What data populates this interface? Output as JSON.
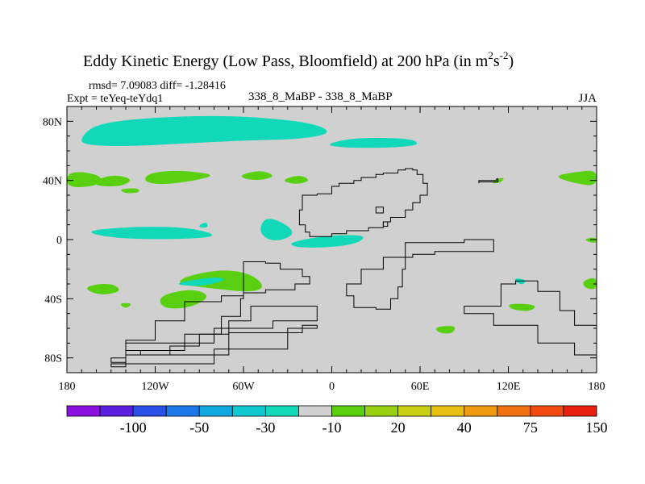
{
  "chart_data": {
    "type": "heatmap",
    "title": "Eddy Kinetic Energy (Low Pass, Bloomfield) at 200 hPa (in m",
    "title_sup1": "2",
    "title_mid": "s",
    "title_sup2": "-2",
    "title_end": ")",
    "stats": "rmsd= 7.09083 diff= -1.28416",
    "experiment": "Expt = teYeq-teYdq1",
    "case_label": "338_8_MaBP - 338_8_MaBP",
    "season": "JJA",
    "xlim": [
      -180,
      180
    ],
    "ylim": [
      -90,
      90
    ],
    "x_ticks": [
      -180,
      -120,
      -60,
      0,
      60,
      120,
      180
    ],
    "x_tick_labels": [
      "180",
      "120W",
      "60W",
      "0",
      "60E",
      "120E",
      "180"
    ],
    "y_ticks": [
      80,
      40,
      0,
      -40,
      -80
    ],
    "y_tick_labels": [
      "80N",
      "40N",
      "0",
      "40S",
      "80S"
    ],
    "colorbar_colors": [
      "#8a10e0",
      "#5a20e0",
      "#2a50e8",
      "#1a78e8",
      "#10a8e0",
      "#10c8d0",
      "#10d8b8",
      "#d0d0d0",
      "#58d010",
      "#98d010",
      "#c8d010",
      "#e8c010",
      "#f09a10",
      "#f07010",
      "#f04a10",
      "#e82010"
    ],
    "colorbar_labels": [
      "-100",
      "-50",
      "-30",
      "-10",
      "20",
      "40",
      "75",
      "150"
    ],
    "background_color": "#d0d0d0",
    "regions": [
      {
        "name": "arctic-band",
        "level": -10,
        "color": "#10d8b8",
        "lonlat": [
          [
            -170,
            70
          ],
          [
            -160,
            78
          ],
          [
            -130,
            82
          ],
          [
            -80,
            84
          ],
          [
            -40,
            82
          ],
          [
            -10,
            78
          ],
          [
            0,
            72
          ],
          [
            -20,
            68
          ],
          [
            -60,
            67
          ],
          [
            -100,
            65
          ],
          [
            -140,
            63
          ],
          [
            -170,
            64
          ]
        ]
      },
      {
        "name": "n-atlantic-arc",
        "level": -10,
        "color": "#10d8b8",
        "lonlat": [
          [
            -5,
            64
          ],
          [
            10,
            68
          ],
          [
            30,
            69
          ],
          [
            55,
            68
          ],
          [
            60,
            64
          ],
          [
            40,
            62
          ],
          [
            10,
            62
          ]
        ]
      },
      {
        "name": "pacific-40n-west",
        "level": 20,
        "color": "#58d010",
        "lonlat": [
          [
            -180,
            45
          ],
          [
            -168,
            46
          ],
          [
            -155,
            42
          ],
          [
            -160,
            36
          ],
          [
            -180,
            35
          ]
        ]
      },
      {
        "name": "pacific-40n-a",
        "level": 20,
        "color": "#58d010",
        "lonlat": [
          [
            -162,
            40
          ],
          [
            -148,
            44
          ],
          [
            -135,
            41
          ],
          [
            -142,
            36
          ],
          [
            -160,
            36
          ]
        ]
      },
      {
        "name": "pacific-40n-b",
        "level": 20,
        "color": "#58d010",
        "lonlat": [
          [
            -125,
            45
          ],
          [
            -105,
            47
          ],
          [
            -78,
            44
          ],
          [
            -92,
            40
          ],
          [
            -115,
            37
          ],
          [
            -128,
            39
          ]
        ]
      },
      {
        "name": "pacific-35n-blob",
        "level": 20,
        "color": "#58d010",
        "lonlat": [
          [
            -145,
            34
          ],
          [
            -132,
            35
          ],
          [
            -130,
            32
          ],
          [
            -140,
            31
          ]
        ]
      },
      {
        "name": "atlantic-45n-a",
        "level": 20,
        "color": "#58d010",
        "lonlat": [
          [
            -62,
            44
          ],
          [
            -48,
            47
          ],
          [
            -38,
            43
          ],
          [
            -48,
            40
          ],
          [
            -60,
            41
          ]
        ]
      },
      {
        "name": "atlantic-40n-b",
        "level": 20,
        "color": "#58d010",
        "lonlat": [
          [
            -35,
            40
          ],
          [
            -22,
            44
          ],
          [
            -14,
            40
          ],
          [
            -24,
            37
          ]
        ]
      },
      {
        "name": "indian-40n-small",
        "level": 20,
        "color": "#58d010",
        "lonlat": [
          [
            112,
            41
          ],
          [
            118,
            42
          ],
          [
            114,
            38
          ],
          [
            108,
            38
          ]
        ]
      },
      {
        "name": "pacific-40n-east",
        "level": 20,
        "color": "#58d010",
        "lonlat": [
          [
            150,
            43
          ],
          [
            168,
            46
          ],
          [
            180,
            47
          ],
          [
            180,
            36
          ],
          [
            165,
            38
          ]
        ]
      },
      {
        "name": "trop-pacific-band",
        "level": -10,
        "color": "#10d8b8",
        "lonlat": [
          [
            -170,
            6
          ],
          [
            -130,
            9
          ],
          [
            -95,
            8
          ],
          [
            -75,
            2
          ],
          [
            -110,
            0
          ],
          [
            -150,
            1
          ]
        ]
      },
      {
        "name": "trop-atlantic-eye",
        "level": -10,
        "color": "#10d8b8",
        "lonlat": [
          [
            -45,
            16
          ],
          [
            -30,
            10
          ],
          [
            -25,
            3
          ],
          [
            -40,
            -2
          ],
          [
            -50,
            5
          ]
        ]
      },
      {
        "name": "caribbean-blob",
        "level": -10,
        "color": "#10d8b8",
        "lonlat": [
          [
            -90,
            10
          ],
          [
            -85,
            12
          ],
          [
            -84,
            8
          ],
          [
            -90,
            8
          ]
        ]
      },
      {
        "name": "trop-africa-band",
        "level": -10,
        "color": "#10d8b8",
        "lonlat": [
          [
            -30,
            -3
          ],
          [
            -20,
            0
          ],
          [
            0,
            3
          ],
          [
            25,
            3
          ],
          [
            15,
            -4
          ],
          [
            -20,
            -6
          ]
        ]
      },
      {
        "name": "sp-south-green",
        "level": 20,
        "color": "#58d010",
        "lonlat": [
          [
            -100,
            -25
          ],
          [
            -75,
            -20
          ],
          [
            -55,
            -23
          ],
          [
            -45,
            -32
          ],
          [
            -55,
            -36
          ],
          [
            -90,
            -32
          ],
          [
            -105,
            -30
          ]
        ]
      },
      {
        "name": "sp-cyan-strip",
        "level": -10,
        "color": "#10d8b8",
        "lonlat": [
          [
            -110,
            -30
          ],
          [
            -80,
            -25
          ],
          [
            -70,
            -27
          ],
          [
            -90,
            -32
          ]
        ]
      },
      {
        "name": "s-pacific-35s",
        "level": 20,
        "color": "#58d010",
        "lonlat": [
          [
            -170,
            -32
          ],
          [
            -150,
            -29
          ],
          [
            -142,
            -35
          ],
          [
            -158,
            -38
          ]
        ]
      },
      {
        "name": "s-pacific-40s",
        "level": 20,
        "color": "#58d010",
        "lonlat": [
          [
            -118,
            -38
          ],
          [
            -95,
            -33
          ],
          [
            -82,
            -38
          ],
          [
            -95,
            -46
          ],
          [
            -115,
            -47
          ]
        ]
      },
      {
        "name": "s-pacific-45s-small",
        "level": 20,
        "color": "#58d010",
        "lonlat": [
          [
            -145,
            -43
          ],
          [
            -135,
            -43
          ],
          [
            -140,
            -47
          ]
        ]
      },
      {
        "name": "s-indian-60s",
        "level": 20,
        "color": "#58d010",
        "lonlat": [
          [
            70,
            -59
          ],
          [
            85,
            -58
          ],
          [
            82,
            -64
          ],
          [
            72,
            -63
          ]
        ]
      },
      {
        "name": "s-indian-45s",
        "level": 20,
        "color": "#58d010",
        "lonlat": [
          [
            120,
            -43
          ],
          [
            140,
            -44
          ],
          [
            135,
            -49
          ],
          [
            121,
            -47
          ]
        ]
      },
      {
        "name": "s-ocean-25s-cyan",
        "level": -10,
        "color": "#10d8b8",
        "lonlat": [
          [
            125,
            -26
          ],
          [
            132,
            -27
          ],
          [
            130,
            -31
          ],
          [
            124,
            -28
          ]
        ]
      },
      {
        "name": "s-pacific-30s-east",
        "level": 20,
        "color": "#58d010",
        "lonlat": [
          [
            170,
            -28
          ],
          [
            180,
            -25
          ],
          [
            180,
            -34
          ],
          [
            172,
            -33
          ]
        ]
      },
      {
        "name": "s-pacific-0-east",
        "level": 20,
        "color": "#58d010",
        "lonlat": [
          [
            170,
            0
          ],
          [
            180,
            2
          ],
          [
            180,
            -3
          ]
        ]
      }
    ],
    "outlines": [
      {
        "name": "continent-north",
        "lonlat": [
          [
            -20,
            30
          ],
          [
            -10,
            31
          ],
          [
            0,
            36
          ],
          [
            5,
            38
          ],
          [
            15,
            40
          ],
          [
            20,
            42
          ],
          [
            30,
            44
          ],
          [
            35,
            45
          ],
          [
            40,
            45
          ],
          [
            45,
            47
          ],
          [
            50,
            48
          ],
          [
            55,
            47
          ],
          [
            58,
            44
          ],
          [
            62,
            38
          ],
          [
            65,
            30
          ],
          [
            60,
            25
          ],
          [
            55,
            20
          ],
          [
            50,
            15
          ],
          [
            40,
            12
          ],
          [
            35,
            8
          ],
          [
            25,
            6
          ],
          [
            10,
            4
          ],
          [
            0,
            2
          ],
          [
            -10,
            2
          ],
          [
            -15,
            5
          ],
          [
            -18,
            10
          ],
          [
            -22,
            20
          ],
          [
            -20,
            30
          ]
        ]
      },
      {
        "name": "east-island",
        "lonlat": [
          [
            100,
            40
          ],
          [
            112,
            41
          ],
          [
            113,
            39
          ],
          [
            100,
            38
          ]
        ]
      },
      {
        "name": "central-continent",
        "lonlat": [
          [
            50,
            -2
          ],
          [
            70,
            -2
          ],
          [
            90,
            0
          ],
          [
            110,
            -8
          ],
          [
            70,
            -10
          ],
          [
            55,
            -12
          ],
          [
            35,
            -20
          ],
          [
            20,
            -30
          ],
          [
            10,
            -38
          ],
          [
            15,
            -46
          ],
          [
            30,
            -47
          ],
          [
            40,
            -40
          ],
          [
            45,
            -32
          ],
          [
            48,
            -20
          ],
          [
            50,
            -2
          ]
        ]
      },
      {
        "name": "south-peninsula-1",
        "lonlat": [
          [
            -60,
            -15
          ],
          [
            -45,
            -16
          ],
          [
            -35,
            -20
          ],
          [
            -20,
            -25
          ],
          [
            -15,
            -30
          ],
          [
            -25,
            -34
          ],
          [
            -45,
            -36
          ],
          [
            -60,
            -38
          ],
          [
            -75,
            -42
          ],
          [
            -100,
            -55
          ],
          [
            -120,
            -68
          ],
          [
            -140,
            -75
          ],
          [
            -130,
            -78
          ],
          [
            -110,
            -72
          ],
          [
            -90,
            -64
          ],
          [
            -75,
            -52
          ],
          [
            -62,
            -40
          ],
          [
            -60,
            -25
          ],
          [
            -60,
            -15
          ]
        ]
      },
      {
        "name": "south-peninsula-2",
        "lonlat": [
          [
            -55,
            -45
          ],
          [
            -30,
            -45
          ],
          [
            -10,
            -55
          ],
          [
            -40,
            -60
          ],
          [
            -80,
            -70
          ],
          [
            -140,
            -80
          ],
          [
            -150,
            -83
          ],
          [
            -140,
            -75
          ],
          [
            -100,
            -64
          ],
          [
            -70,
            -55
          ],
          [
            -55,
            -45
          ]
        ]
      },
      {
        "name": "south-arm-3",
        "lonlat": [
          [
            -10,
            -58
          ],
          [
            -20,
            -63
          ],
          [
            -70,
            -78
          ],
          [
            -140,
            -86
          ],
          [
            -150,
            -84
          ],
          [
            -80,
            -74
          ],
          [
            -30,
            -60
          ],
          [
            -10,
            -58
          ]
        ]
      },
      {
        "name": "south-east-wedge",
        "lonlat": [
          [
            90,
            -45
          ],
          [
            115,
            -30
          ],
          [
            125,
            -28
          ],
          [
            140,
            -35
          ],
          [
            155,
            -48
          ],
          [
            165,
            -58
          ],
          [
            180,
            -72
          ],
          [
            180,
            -78
          ],
          [
            165,
            -70
          ],
          [
            140,
            -58
          ],
          [
            110,
            -50
          ],
          [
            90,
            -45
          ]
        ]
      },
      {
        "name": "island-16n",
        "lonlat": [
          [
            30,
            22
          ],
          [
            35,
            22
          ],
          [
            35,
            18
          ],
          [
            30,
            18
          ]
        ]
      },
      {
        "name": "island-east-small",
        "lonlat": [
          [
            35,
            12
          ],
          [
            38,
            12
          ],
          [
            38,
            9
          ],
          [
            35,
            9
          ]
        ]
      }
    ]
  }
}
